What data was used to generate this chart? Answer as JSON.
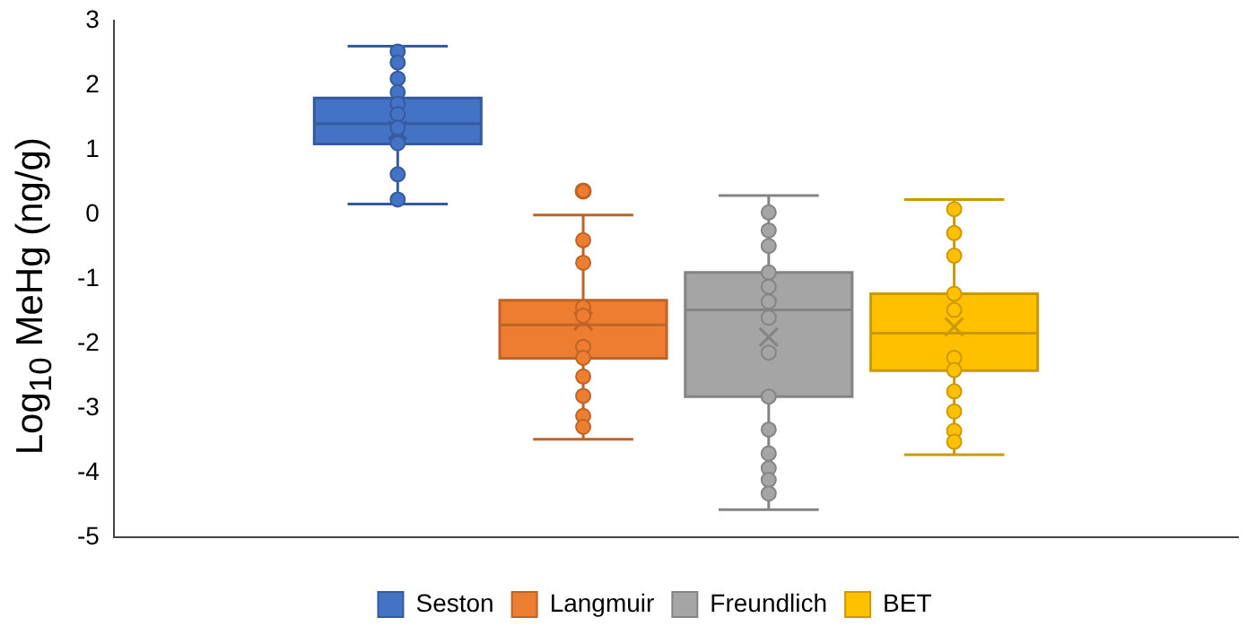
{
  "chart_data": {
    "type": "box",
    "ylabel": "Log$_{10}$ MeHg (ng/g)",
    "categories": [
      null
    ],
    "ylim": [
      -5,
      3
    ],
    "yticks": [
      -5,
      -4,
      -3,
      -2,
      -1,
      0,
      1,
      2,
      3
    ],
    "grid": false,
    "legend": "bottom",
    "marker": "circle",
    "series": [
      {
        "name": "Seston",
        "type": "box",
        "color": "#4472c4",
        "boxes": [
          {
            "low": 0.16,
            "q1": 1.09,
            "median": 1.4,
            "q3": 1.8,
            "high": 2.6,
            "mean": 1.3
          }
        ]
      },
      {
        "name": "Langmuir",
        "type": "box",
        "color": "#ed7d31",
        "boxes": [
          {
            "low": -3.48,
            "q1": -2.23,
            "median": -1.71,
            "q3": -1.33,
            "high": -0.01,
            "mean": -1.65,
            "outliers": [
              0.36
            ]
          }
        ]
      },
      {
        "name": "Freundlich",
        "type": "box",
        "color": "#a5a5a5",
        "boxes": [
          {
            "low": -4.57,
            "q1": -2.82,
            "median": -1.48,
            "q3": -0.9,
            "high": 0.29,
            "mean": -1.9
          }
        ]
      },
      {
        "name": "BET",
        "type": "box",
        "color": "#ffc000",
        "boxes": [
          {
            "low": -3.72,
            "q1": -2.42,
            "median": -1.84,
            "q3": -1.23,
            "high": 0.23,
            "mean": -1.74
          }
        ]
      },
      {
        "type": "scatter",
        "color": "#4472c4",
        "x": [
          null,
          null,
          null,
          null,
          null,
          null,
          null,
          null,
          null,
          null
        ],
        "values": [
          2.52,
          2.35,
          2.1,
          1.89,
          1.71,
          1.55,
          1.34,
          1.1,
          0.62,
          0.23
        ]
      },
      {
        "type": "scatter",
        "color": "#ed7d31",
        "x": [
          null,
          null,
          null,
          null,
          null,
          null,
          null,
          null,
          null,
          null
        ],
        "values": [
          -0.4,
          -0.75,
          -1.44,
          -1.57,
          -2.05,
          -2.22,
          -2.51,
          -2.81,
          -3.12,
          -3.29
        ]
      },
      {
        "type": "scatter",
        "color": "#a5a5a5",
        "x": [
          null,
          null,
          null,
          null,
          null,
          null,
          null,
          null,
          null,
          null,
          null,
          null,
          null,
          null
        ],
        "values": [
          0.03,
          -0.25,
          -0.49,
          -0.9,
          -1.12,
          -1.35,
          -1.6,
          -2.14,
          -2.82,
          -3.33,
          -3.7,
          -3.93,
          -4.11,
          -4.32
        ]
      },
      {
        "type": "scatter",
        "color": "#ffc000",
        "x": [
          null,
          null,
          null,
          null,
          null,
          null,
          null,
          null,
          null,
          null,
          null
        ],
        "values": [
          0.08,
          -0.29,
          -0.64,
          -1.23,
          -1.48,
          -2.22,
          -2.41,
          -2.74,
          -3.05,
          -3.35,
          -3.52
        ]
      }
    ]
  }
}
